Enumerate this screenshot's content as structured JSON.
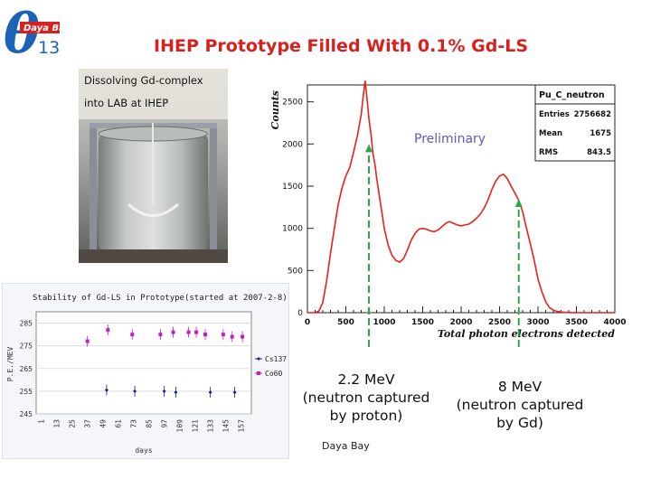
{
  "logo": {
    "symbol": "θ",
    "brand": "Daya Bay",
    "subscript": "13"
  },
  "title": "IHEP Prototype Filled With 0.1% Gd-LS",
  "photo": {
    "caption_line1": "Dissolving Gd-complex",
    "caption_line2": "into LAB at IHEP"
  },
  "chart_data": [
    {
      "type": "line",
      "title": "Pu_C_neutron",
      "xlabel": "Total photon electrons detected",
      "ylabel": "Counts",
      "xlim": [
        0,
        4000
      ],
      "ylim": [
        0,
        2700
      ],
      "xticks": [
        0,
        500,
        1000,
        1500,
        2000,
        2500,
        3000,
        3500,
        4000
      ],
      "yticks": [
        0,
        500,
        1000,
        1500,
        2000,
        2500
      ],
      "tick_labels_x": [
        "0",
        "500",
        "1000",
        "1500",
        "2000",
        "2500",
        "3000",
        "3500",
        "4000"
      ],
      "tick_labels_y": [
        "0",
        "500",
        "1000",
        "1500",
        "2000",
        "2500"
      ],
      "watermark": "Preliminary",
      "stats": [
        {
          "label": "Entries",
          "value": "2756682"
        },
        {
          "label": "Mean",
          "value": "1675"
        },
        {
          "label": "RMS",
          "value": "843.5"
        }
      ],
      "series": [
        {
          "name": "Pu_C_neutron",
          "color": "#e8201c",
          "x": [
            0,
            100,
            150,
            200,
            250,
            300,
            350,
            400,
            450,
            500,
            550,
            600,
            650,
            700,
            720,
            750,
            780,
            800,
            830,
            850,
            880,
            900,
            950,
            1000,
            1050,
            1100,
            1150,
            1200,
            1250,
            1300,
            1350,
            1400,
            1450,
            1500,
            1550,
            1600,
            1650,
            1700,
            1750,
            1800,
            1850,
            1900,
            1950,
            2000,
            2050,
            2100,
            2150,
            2200,
            2250,
            2300,
            2350,
            2400,
            2450,
            2500,
            2550,
            2600,
            2650,
            2700,
            2750,
            2800,
            2850,
            2900,
            2950,
            3000,
            3050,
            3100,
            3150,
            3200,
            3250,
            3300,
            3350,
            3400,
            3450,
            3500,
            3600,
            3700,
            3800,
            3900,
            4000
          ],
          "y": [
            0,
            0,
            20,
            120,
            380,
            700,
            1000,
            1280,
            1480,
            1620,
            1720,
            1900,
            2100,
            2350,
            2520,
            2750,
            2500,
            2300,
            2100,
            1900,
            1750,
            1600,
            1300,
            1000,
            800,
            680,
            620,
            600,
            640,
            740,
            860,
            940,
            990,
            1000,
            990,
            970,
            960,
            980,
            1020,
            1060,
            1080,
            1060,
            1040,
            1030,
            1040,
            1050,
            1080,
            1120,
            1170,
            1240,
            1340,
            1460,
            1560,
            1620,
            1640,
            1590,
            1500,
            1420,
            1330,
            1200,
            1000,
            820,
            620,
            400,
            250,
            130,
            60,
            30,
            15,
            8,
            4,
            2,
            1,
            0,
            0,
            0,
            0,
            0,
            0
          ]
        }
      ],
      "annotations": [
        {
          "x": 800,
          "label": "2.2 MeV (neutron captured by proton)",
          "line1": "2.2 MeV",
          "line2": "(neutron captured",
          "line3": "by proton)"
        },
        {
          "x": 2750,
          "label": "8 MeV (neutron captured by Gd)",
          "line1": "8 MeV",
          "line2": "(neutron captured",
          "line3": "by Gd)"
        }
      ]
    },
    {
      "type": "scatter",
      "title": "Stability of Gd-LS in Prototype(started at 2007-2-8)",
      "xlabel": "days",
      "ylabel": "P.E./MEV",
      "ylim": [
        245,
        290
      ],
      "xticks": [
        1,
        13,
        25,
        37,
        49,
        61,
        73,
        85,
        97,
        109,
        121,
        133,
        145,
        157
      ],
      "tick_labels_x": [
        "1",
        "13",
        "25",
        "37",
        "49",
        "61",
        "73",
        "85",
        "97",
        "109",
        "121",
        "133",
        "145",
        "157"
      ],
      "yticks": [
        245,
        255,
        265,
        275,
        285
      ],
      "tick_labels_y": [
        "245",
        "255",
        "265",
        "275",
        "285"
      ],
      "series": [
        {
          "name": "Cs137",
          "color": "#1a1a7a",
          "x": [
            52,
            74,
            97,
            106,
            133,
            152
          ],
          "y": [
            255.5,
            255,
            255,
            254.5,
            254.5,
            254.5
          ]
        },
        {
          "name": "Co60",
          "color": "#c020c0",
          "x": [
            37,
            53,
            72,
            94,
            104,
            116,
            122,
            129,
            143,
            150,
            158
          ],
          "y": [
            277,
            282,
            280,
            280,
            281,
            281,
            281,
            280,
            280,
            279,
            279
          ]
        }
      ]
    }
  ],
  "footer": "Daya Bay"
}
